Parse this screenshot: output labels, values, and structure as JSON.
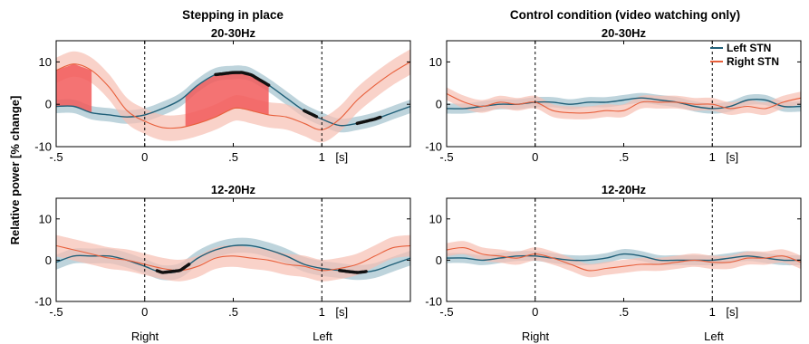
{
  "figure": {
    "ylabel": "Relative power [% change]",
    "left_column_title": "Stepping in place",
    "right_column_title": "Control condition (video watching only)",
    "bottom_labels": {
      "right": "Right",
      "left": "Left"
    },
    "unit_label": "[s]",
    "legend": [
      {
        "name": "Left STN",
        "color": "#1f5f78"
      },
      {
        "name": "Right STN",
        "color": "#e8603c"
      }
    ]
  },
  "colors": {
    "left_stn": "#1f5f78",
    "left_stn_band": "#a8c6d0",
    "right_stn": "#e8603c",
    "right_stn_band": "#f6bfb2",
    "significance_fill": "#f25a5a",
    "significance_line": "#111111"
  },
  "chart_data": [
    {
      "id": "p1",
      "type": "line",
      "title": "20-30Hz",
      "xlim": [
        -0.5,
        1.5
      ],
      "ylim": [
        -10,
        15
      ],
      "xticks": [
        -0.5,
        0,
        0.5,
        1
      ],
      "xtick_labels": [
        "-.5",
        "0",
        ".5",
        "1"
      ],
      "yticks": [
        10,
        0,
        -10
      ],
      "ytick_labels": [
        "10",
        "0",
        "-10"
      ],
      "vlines": [
        0,
        1
      ],
      "x": [
        -0.5,
        -0.4,
        -0.3,
        -0.2,
        -0.1,
        0,
        0.1,
        0.2,
        0.3,
        0.4,
        0.5,
        0.55,
        0.6,
        0.7,
        0.8,
        0.9,
        1.0,
        1.1,
        1.2,
        1.3,
        1.4,
        1.5
      ],
      "series": [
        {
          "name": "Left STN",
          "values": [
            -0.5,
            -0.5,
            -2.0,
            -2.5,
            -3.0,
            -2.5,
            -1.0,
            1.0,
            4.5,
            7.0,
            7.5,
            7.5,
            7.0,
            4.5,
            1.5,
            -1.5,
            -3.5,
            -5.0,
            -4.5,
            -3.5,
            -2.0,
            -0.5
          ],
          "band": 1.6
        },
        {
          "name": "Right STN",
          "values": [
            8.0,
            9.5,
            8.0,
            4.0,
            -1.5,
            -4.0,
            -5.5,
            -5.5,
            -4.5,
            -3.0,
            -1.0,
            -1.0,
            -1.5,
            -2.5,
            -3.0,
            -4.5,
            -6.0,
            -3.5,
            1.0,
            4.5,
            7.5,
            10.0
          ],
          "band": 3.0
        }
      ],
      "significance_fills": [
        [
          -0.5,
          -0.3
        ],
        [
          0.23,
          0.7
        ]
      ],
      "significance_lines": [
        [
          0.4,
          0.7
        ],
        [
          0.9,
          0.97
        ],
        [
          1.2,
          1.33
        ]
      ]
    },
    {
      "id": "p2",
      "type": "line",
      "title": "20-30Hz",
      "xlim": [
        -0.5,
        1.5
      ],
      "ylim": [
        -10,
        15
      ],
      "xticks": [
        -0.5,
        0,
        0.5,
        1
      ],
      "xtick_labels": [
        "-.5",
        "0",
        ".5",
        "1"
      ],
      "yticks": [
        10,
        0,
        -10
      ],
      "ytick_labels": [
        "10",
        "0",
        "-10"
      ],
      "vlines": [
        0,
        1
      ],
      "legend": true,
      "x": [
        -0.5,
        -0.4,
        -0.3,
        -0.2,
        -0.1,
        0,
        0.1,
        0.2,
        0.3,
        0.4,
        0.5,
        0.6,
        0.7,
        0.8,
        0.9,
        1.0,
        1.1,
        1.2,
        1.3,
        1.4,
        1.5
      ],
      "series": [
        {
          "name": "Left STN",
          "values": [
            -1.0,
            -1.0,
            -0.5,
            0.0,
            0.0,
            0.5,
            0.5,
            0.0,
            0.5,
            0.5,
            1.0,
            1.5,
            1.0,
            0.5,
            -0.5,
            -1.0,
            -0.5,
            1.0,
            1.0,
            -0.5,
            -0.5
          ],
          "band": 1.2
        },
        {
          "name": "Right STN",
          "values": [
            2.5,
            0.5,
            -0.5,
            0.5,
            0.0,
            0.5,
            -1.5,
            -2.0,
            -2.0,
            -1.5,
            -1.5,
            0.5,
            0.5,
            0.5,
            0.0,
            0.0,
            -1.0,
            -0.5,
            -1.0,
            0.5,
            1.5
          ],
          "band": 1.5
        }
      ]
    },
    {
      "id": "p3",
      "type": "line",
      "title": "12-20Hz",
      "xlim": [
        -0.5,
        1.5
      ],
      "ylim": [
        -10,
        15
      ],
      "xticks": [
        -0.5,
        0,
        0.5,
        1
      ],
      "xtick_labels": [
        "-.5",
        "0",
        ".5",
        "1"
      ],
      "yticks": [
        10,
        0,
        -10
      ],
      "ytick_labels": [
        "10",
        "0",
        "-10"
      ],
      "vlines": [
        0,
        1
      ],
      "x": [
        -0.5,
        -0.4,
        -0.3,
        -0.2,
        -0.1,
        0,
        0.1,
        0.2,
        0.3,
        0.4,
        0.5,
        0.6,
        0.7,
        0.8,
        0.9,
        1.0,
        1.1,
        1.2,
        1.3,
        1.4,
        1.5
      ],
      "series": [
        {
          "name": "Left STN",
          "values": [
            -0.5,
            1.0,
            1.0,
            1.0,
            0.0,
            -1.5,
            -3.0,
            -2.5,
            0.5,
            2.5,
            3.5,
            3.5,
            2.5,
            1.0,
            -1.0,
            -2.0,
            -2.5,
            -3.0,
            -2.5,
            -1.0,
            0.5
          ],
          "band": 1.8
        },
        {
          "name": "Right STN",
          "values": [
            3.5,
            2.5,
            1.5,
            0.5,
            0.0,
            -1.0,
            -2.0,
            -2.5,
            -1.5,
            0.5,
            1.0,
            0.5,
            0.0,
            -1.0,
            -1.5,
            -2.5,
            -2.0,
            -1.0,
            1.0,
            3.0,
            3.5
          ],
          "band": 2.6
        }
      ],
      "significance_lines": [
        [
          0.07,
          0.25
        ],
        [
          1.1,
          1.25
        ]
      ]
    },
    {
      "id": "p4",
      "type": "line",
      "title": "12-20Hz",
      "xlim": [
        -0.5,
        1.5
      ],
      "ylim": [
        -10,
        15
      ],
      "xticks": [
        -0.5,
        0,
        0.5,
        1
      ],
      "xtick_labels": [
        "-.5",
        "0",
        ".5",
        "1"
      ],
      "yticks": [
        10,
        0,
        -10
      ],
      "ytick_labels": [
        "10",
        "0",
        "-10"
      ],
      "vlines": [
        0,
        1
      ],
      "x": [
        -0.5,
        -0.4,
        -0.3,
        -0.2,
        -0.1,
        0,
        0.1,
        0.2,
        0.3,
        0.4,
        0.5,
        0.6,
        0.7,
        0.8,
        0.9,
        1.0,
        1.1,
        1.2,
        1.3,
        1.4,
        1.5
      ],
      "series": [
        {
          "name": "Left STN",
          "values": [
            0.5,
            0.5,
            0.0,
            0.5,
            1.0,
            1.0,
            0.5,
            0.0,
            0.0,
            0.5,
            1.5,
            1.0,
            0.0,
            0.0,
            0.0,
            0.0,
            0.5,
            1.0,
            0.5,
            0.0,
            0.0
          ],
          "band": 1.2
        },
        {
          "name": "Right STN",
          "values": [
            2.5,
            3.0,
            1.5,
            1.0,
            0.5,
            1.5,
            0.5,
            -1.0,
            -2.5,
            -2.0,
            -1.5,
            -1.0,
            -1.0,
            -0.5,
            0.0,
            -0.5,
            -0.5,
            0.5,
            0.5,
            1.0,
            -0.5
          ],
          "band": 1.6
        }
      ]
    }
  ]
}
